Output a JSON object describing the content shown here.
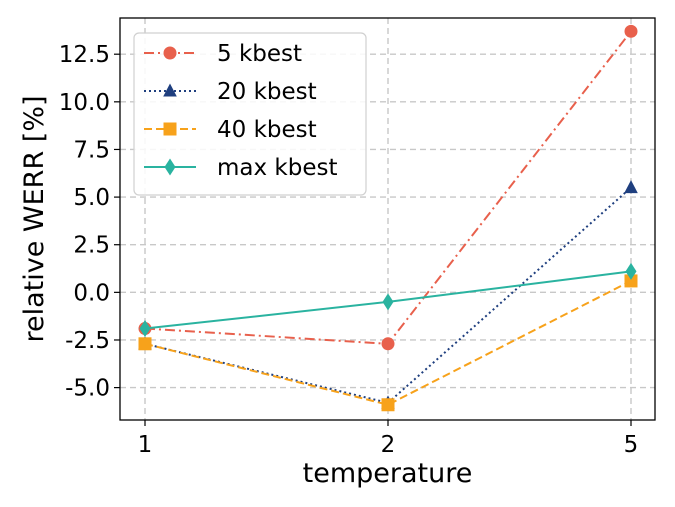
{
  "chart_data": {
    "type": "line",
    "xlabel": "temperature",
    "ylabel": "relative WERR [%]",
    "categories": [
      "1",
      "2",
      "5"
    ],
    "ylim": [
      -6.7,
      14.4
    ],
    "yticks": [
      -5.0,
      -2.5,
      0.0,
      2.5,
      5.0,
      7.5,
      10.0,
      12.5
    ],
    "ytick_labels": [
      "-5.0",
      "-2.5",
      "0.0",
      "2.5",
      "5.0",
      "7.5",
      "10.0",
      "12.5"
    ],
    "grid": true,
    "legend_position": "top-left",
    "series": [
      {
        "name": "5 kbest",
        "values": [
          -1.9,
          -2.7,
          13.7
        ],
        "color": "#e8604c",
        "marker": "circle",
        "linestyle": "dashdot"
      },
      {
        "name": "20 kbest",
        "values": [
          -2.7,
          -5.8,
          5.5
        ],
        "color": "#1f3f7f",
        "marker": "triangle",
        "linestyle": "dotted"
      },
      {
        "name": "40 kbest",
        "values": [
          -2.7,
          -5.9,
          0.6
        ],
        "color": "#f7a21b",
        "marker": "square",
        "linestyle": "dashed"
      },
      {
        "name": "max kbest",
        "values": [
          -1.9,
          -0.5,
          1.1
        ],
        "color": "#2ab3a0",
        "marker": "diamond",
        "linestyle": "solid"
      }
    ]
  }
}
